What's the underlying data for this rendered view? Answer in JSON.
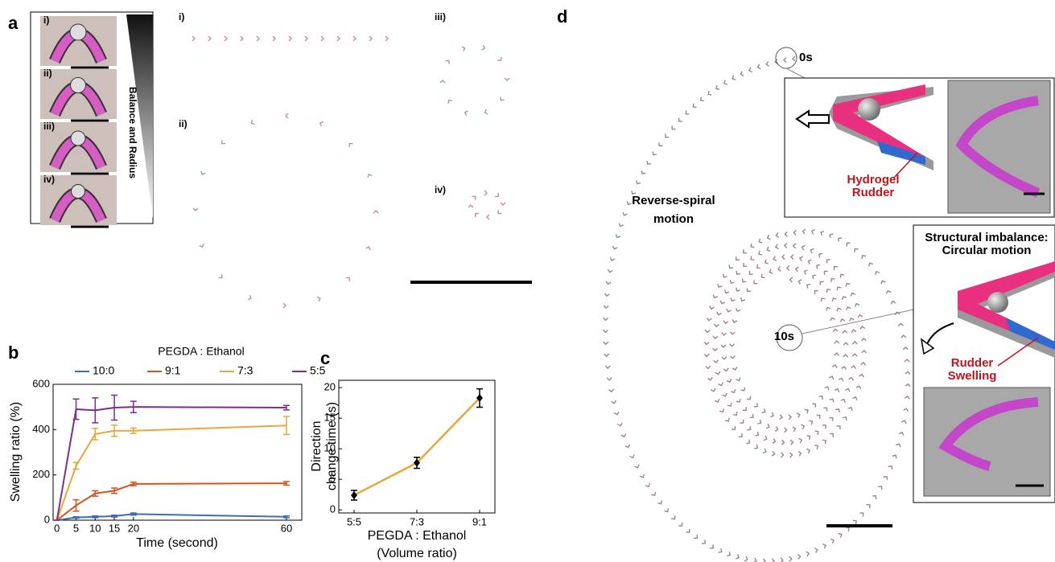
{
  "panels": {
    "a": {
      "label": "a",
      "image_labels": [
        "i)",
        "ii)",
        "iii)",
        "iv)"
      ],
      "gradient_label": "Balance and Radius",
      "trajectory_labels": [
        "i)",
        "ii)",
        "iii)",
        "iv)"
      ]
    },
    "b": {
      "label": "b"
    },
    "c": {
      "label": "c"
    },
    "d": {
      "label": "d",
      "start_time": "0s",
      "end_time": "10s",
      "motion_label": [
        "Reverse-spiral",
        "motion"
      ],
      "inset1_label": [
        "Hydrogel",
        "Rudder"
      ],
      "inset2_title": [
        "Structural imbalance:",
        "Circular motion"
      ],
      "inset2_label": [
        "Rudder",
        "Swelling"
      ]
    }
  },
  "chart_data": [
    {
      "type": "line",
      "x_label": "Time (second)",
      "y_label": "Swelling ratio (%)",
      "legend_title": "PEGDA : Ethanol",
      "x": [
        0,
        5,
        10,
        15,
        20,
        60
      ],
      "xlim": [
        -1,
        64
      ],
      "xticks": [
        0,
        5,
        10,
        15,
        20,
        60
      ],
      "ylim": [
        0,
        600
      ],
      "yticks": [
        0,
        200,
        400,
        600
      ],
      "series": [
        {
          "name": "10:0",
          "color": "#3a6fb5",
          "values": [
            0,
            12,
            15,
            18,
            27,
            15
          ],
          "errors": [
            0,
            3,
            4,
            4,
            5,
            4
          ]
        },
        {
          "name": "9:1",
          "color": "#d4541f",
          "values": [
            0,
            65,
            118,
            130,
            160,
            163
          ],
          "errors": [
            0,
            25,
            12,
            12,
            8,
            8
          ]
        },
        {
          "name": "7:3",
          "color": "#e8a838",
          "values": [
            0,
            240,
            380,
            395,
            395,
            418
          ],
          "errors": [
            0,
            15,
            25,
            25,
            12,
            40
          ]
        },
        {
          "name": "5:5",
          "color": "#7e2f8e",
          "values": [
            0,
            490,
            485,
            497,
            500,
            497
          ],
          "errors": [
            0,
            45,
            55,
            55,
            25,
            10
          ]
        }
      ]
    },
    {
      "type": "category-line",
      "x_label": [
        "PEGDA : Ethanol",
        "(Volume ratio)"
      ],
      "y_label": [
        "Direction",
        "change time (s)"
      ],
      "categories": [
        "5:5",
        "7:3",
        "9:1"
      ],
      "values": [
        2.4,
        7.7,
        18.3
      ],
      "errors": [
        0.8,
        0.9,
        1.5
      ],
      "color": "#e8a838",
      "marker_color": "#000000",
      "ylim": [
        -0.5,
        21.2
      ],
      "yticks": [
        0,
        5,
        10,
        15,
        20
      ]
    }
  ]
}
